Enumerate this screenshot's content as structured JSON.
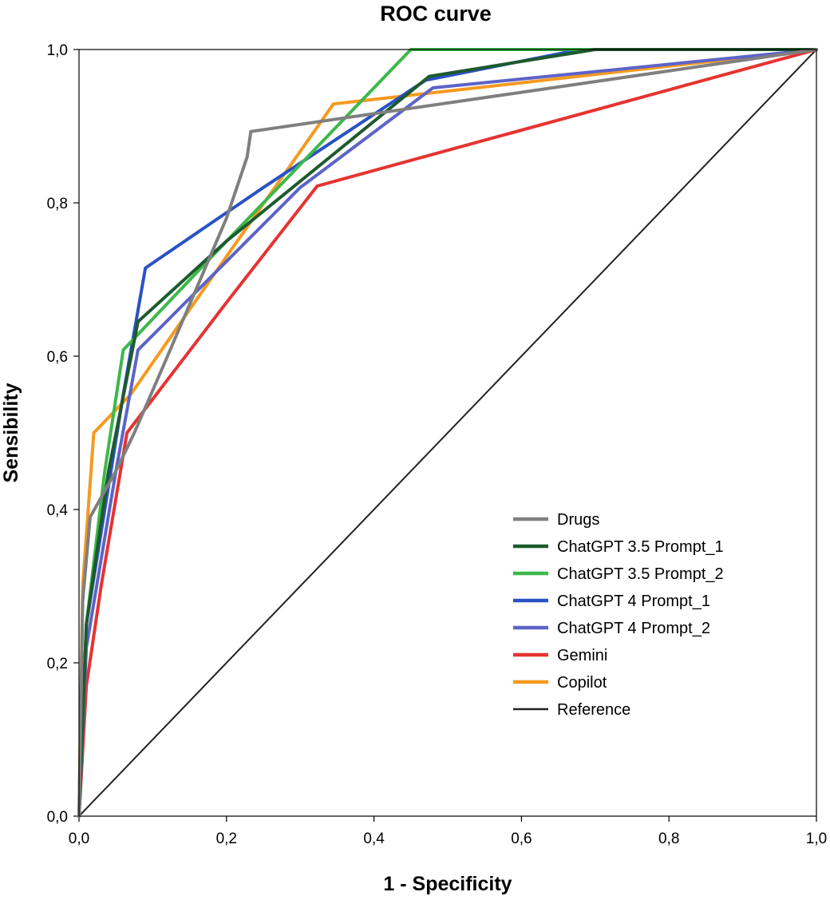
{
  "chart_data": {
    "type": "line",
    "title": "ROC curve",
    "xlabel": "1 - Specificity",
    "ylabel": "Sensibility",
    "xlim": [
      0,
      1
    ],
    "ylim": [
      0,
      1
    ],
    "x_tick_labels": [
      "0,0",
      "0,2",
      "0,4",
      "0,6",
      "0,8",
      "1,0"
    ],
    "y_tick_labels": [
      "0,0",
      "0,2",
      "0,4",
      "0,6",
      "0,8",
      "1,0"
    ],
    "grid": false,
    "legend_position": "bottom-right",
    "series": [
      {
        "name": "Drugs",
        "color": "#7f7f7f",
        "x": [
          0,
          0.005,
          0.015,
          0.05,
          0.075,
          0.12,
          0.2,
          0.228,
          0.233,
          1
        ],
        "y": [
          0,
          0.28,
          0.39,
          0.45,
          0.5,
          0.6,
          0.78,
          0.86,
          0.893,
          1
        ]
      },
      {
        "name": "ChatGPT 3.5 Prompt_1",
        "color": "#1d5a2e",
        "x": [
          0,
          0.01,
          0.04,
          0.08,
          0.2,
          0.475,
          0.7,
          1
        ],
        "y": [
          0,
          0.25,
          0.45,
          0.645,
          0.75,
          0.965,
          1,
          1
        ]
      },
      {
        "name": "ChatGPT 3.5 Prompt_2",
        "color": "#3cb84a",
        "x": [
          0,
          0.01,
          0.035,
          0.06,
          0.2,
          0.45,
          1
        ],
        "y": [
          0,
          0.25,
          0.45,
          0.608,
          0.75,
          1,
          1
        ]
      },
      {
        "name": "ChatGPT 4 Prompt_1",
        "color": "#2a52c4",
        "x": [
          0,
          0.01,
          0.06,
          0.09,
          0.25,
          0.47,
          0.68,
          1
        ],
        "y": [
          0,
          0.25,
          0.55,
          0.715,
          0.82,
          0.96,
          1,
          1
        ]
      },
      {
        "name": "ChatGPT 4 Prompt_2",
        "color": "#5c63c8",
        "x": [
          0,
          0.01,
          0.05,
          0.08,
          0.3,
          0.48,
          1
        ],
        "y": [
          0,
          0.22,
          0.45,
          0.608,
          0.82,
          0.95,
          1
        ]
      },
      {
        "name": "Gemini",
        "color": "#e63331",
        "x": [
          0,
          0.01,
          0.03,
          0.065,
          0.2,
          0.323,
          1
        ],
        "y": [
          0,
          0.17,
          0.3,
          0.5,
          0.67,
          0.822,
          1
        ]
      },
      {
        "name": "Copilot",
        "color": "#f59a1f",
        "x": [
          0,
          0.005,
          0.02,
          0.07,
          0.2,
          0.345,
          1
        ],
        "y": [
          0,
          0.3,
          0.5,
          0.55,
          0.73,
          0.929,
          1
        ]
      },
      {
        "name": "Reference",
        "color": "#222222",
        "reference": true,
        "x": [
          0,
          1
        ],
        "y": [
          0,
          1
        ]
      }
    ]
  }
}
